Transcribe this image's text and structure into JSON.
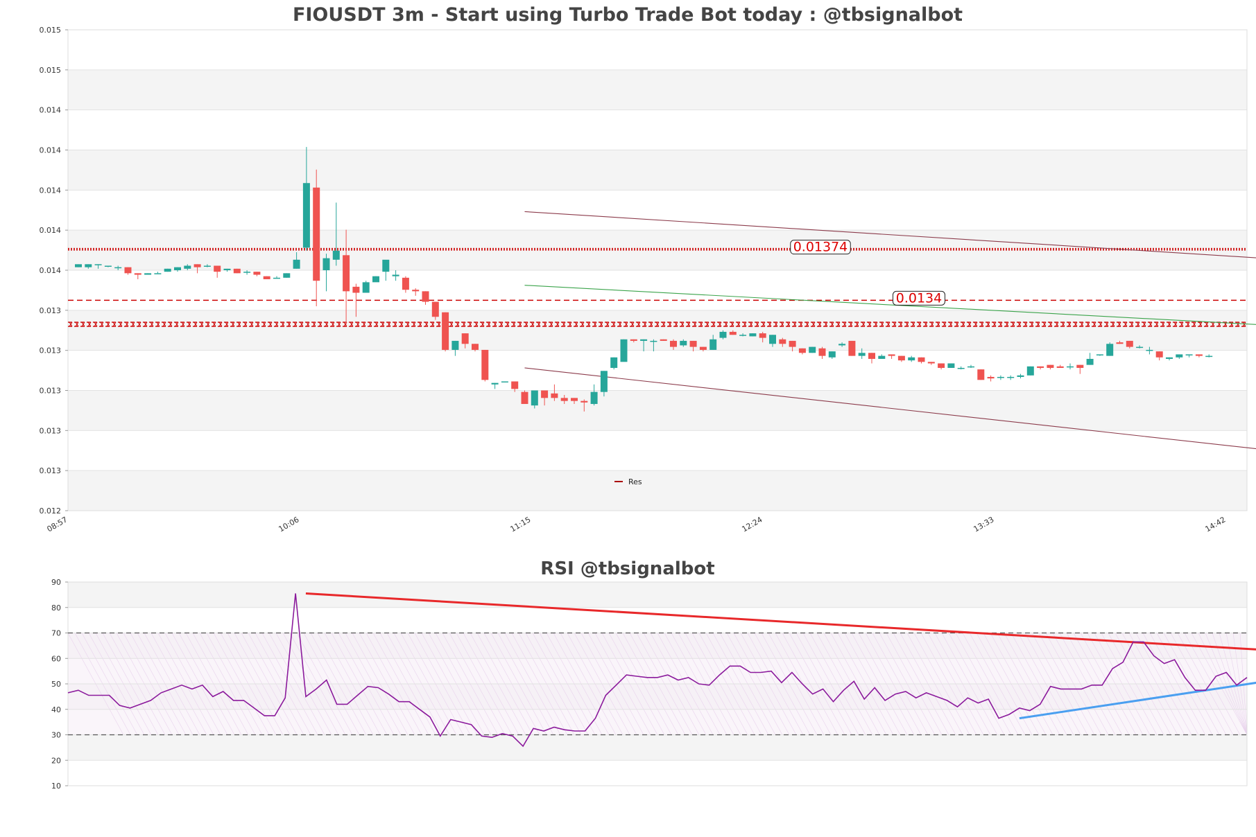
{
  "chart_data": [
    {
      "type": "candlestick",
      "title": "FIOUSDT 3m - Start using Turbo Trade Bot today : @tbsignalbot",
      "xlabel": "",
      "ylabel": "",
      "ylim": [
        0.012,
        0.0152
      ],
      "y_tick_labels": [
        "0.012",
        "0.013",
        "0.013",
        "0.013",
        "0.013",
        "0.013",
        "0.014",
        "0.014",
        "0.014",
        "0.014",
        "0.014",
        "0.015",
        "0.015"
      ],
      "x_tick_labels": [
        "08:57",
        "10:06",
        "11:15",
        "12:24",
        "13:33",
        "14:42"
      ],
      "legend": {
        "entries": [
          "Res"
        ],
        "placement": "bottom-center"
      },
      "grid": "horizontal bands",
      "levels": [
        {
          "value": 0.01374,
          "label": "0.01374",
          "style": "dotted",
          "color": "#cc0000"
        },
        {
          "value": 0.0134,
          "label": "0.0134",
          "style": "dashed",
          "color": "#cc0000"
        },
        {
          "value": 0.01324,
          "label": "",
          "style": "hatched",
          "color": "#cc0000"
        }
      ],
      "trendlines": [
        {
          "name": "channel-upper",
          "color": "#8b3a4a",
          "points": [
            [
              45,
              0.01399
            ],
            [
              189,
              0.01339
            ]
          ]
        },
        {
          "name": "channel-mid",
          "color": "#3aa34a",
          "points": [
            [
              45,
              0.0135
            ],
            [
              189,
              0.01299
            ]
          ]
        },
        {
          "name": "channel-lower",
          "color": "#8b3a4a",
          "points": [
            [
              45,
              0.01295
            ],
            [
              189,
              0.0119
            ]
          ]
        }
      ],
      "colors": {
        "up": "#26a69a",
        "down": "#ef5350"
      },
      "candles": [
        [
          0.01362,
          0.01364,
          0.01364,
          0.01362
        ],
        [
          0.01362,
          0.01364,
          0.01364,
          0.01361
        ],
        [
          0.01364,
          0.01364,
          0.01364,
          0.01361
        ],
        [
          0.01363,
          0.01363,
          0.01363,
          0.01362
        ],
        [
          0.01362,
          0.01362,
          0.01363,
          0.0136
        ],
        [
          0.01362,
          0.01358,
          0.01362,
          0.01357
        ],
        [
          0.01358,
          0.01357,
          0.01358,
          0.01354
        ],
        [
          0.01357,
          0.01358,
          0.01358,
          0.01357
        ],
        [
          0.01358,
          0.01358,
          0.01359,
          0.01358
        ],
        [
          0.01359,
          0.01361,
          0.01361,
          0.01359
        ],
        [
          0.0136,
          0.01362,
          0.01362,
          0.01359
        ],
        [
          0.01361,
          0.01363,
          0.01364,
          0.0136
        ],
        [
          0.01364,
          0.01362,
          0.01364,
          0.01358
        ],
        [
          0.01363,
          0.01363,
          0.01364,
          0.01362
        ],
        [
          0.01363,
          0.01359,
          0.01363,
          0.01355
        ],
        [
          0.0136,
          0.01361,
          0.01361,
          0.01359
        ],
        [
          0.01361,
          0.01358,
          0.01361,
          0.01358
        ],
        [
          0.01359,
          0.01359,
          0.0136,
          0.01357
        ],
        [
          0.01359,
          0.01357,
          0.01359,
          0.01356
        ],
        [
          0.01356,
          0.01354,
          0.01356,
          0.01354
        ],
        [
          0.01355,
          0.01355,
          0.01356,
          0.01355
        ],
        [
          0.01355,
          0.01358,
          0.01358,
          0.01355
        ],
        [
          0.01361,
          0.01367,
          0.01372,
          0.01361
        ],
        [
          0.01375,
          0.01418,
          0.01442,
          0.01373
        ],
        [
          0.01415,
          0.01353,
          0.01427,
          0.01336
        ],
        [
          0.0136,
          0.01368,
          0.01371,
          0.01346
        ],
        [
          0.01367,
          0.01373,
          0.01405,
          0.01363
        ],
        [
          0.0137,
          0.01346,
          0.01387,
          0.01324
        ],
        [
          0.01349,
          0.01345,
          0.01351,
          0.01329
        ],
        [
          0.01345,
          0.01352,
          0.01353,
          0.01348
        ],
        [
          0.01352,
          0.01356,
          0.01356,
          0.01353
        ],
        [
          0.01359,
          0.01367,
          0.01365,
          0.01353
        ],
        [
          0.01356,
          0.01357,
          0.0136,
          0.01353
        ],
        [
          0.01355,
          0.01347,
          0.01356,
          0.01345
        ],
        [
          0.01347,
          0.01346,
          0.01348,
          0.01343
        ],
        [
          0.01346,
          0.01339,
          0.01346,
          0.01337
        ],
        [
          0.01339,
          0.01329,
          0.01339,
          0.01327
        ],
        [
          0.01332,
          0.01307,
          0.01332,
          0.01306
        ],
        [
          0.01307,
          0.01313,
          0.01313,
          0.01303
        ],
        [
          0.01318,
          0.01311,
          0.01318,
          0.01308
        ],
        [
          0.01311,
          0.01307,
          0.01311,
          0.01306
        ],
        [
          0.01307,
          0.01287,
          0.01307,
          0.01286
        ],
        [
          0.01284,
          0.01285,
          0.01285,
          0.01281
        ],
        [
          0.01286,
          0.01286,
          0.01286,
          0.01286
        ],
        [
          0.01286,
          0.01281,
          0.01286,
          0.01279
        ],
        [
          0.01279,
          0.01271,
          0.0128,
          0.01271
        ],
        [
          0.0127,
          0.0128,
          0.0128,
          0.01268
        ],
        [
          0.0128,
          0.01275,
          0.0128,
          0.0127
        ],
        [
          0.01278,
          0.01275,
          0.01284,
          0.01273
        ],
        [
          0.01275,
          0.01273,
          0.01277,
          0.01271
        ],
        [
          0.01275,
          0.01273,
          0.01275,
          0.01271
        ],
        [
          0.01273,
          0.01272,
          0.01274,
          0.01266
        ],
        [
          0.01271,
          0.01279,
          0.01284,
          0.0127
        ],
        [
          0.01279,
          0.01293,
          0.01293,
          0.01276
        ],
        [
          0.01295,
          0.01302,
          0.01302,
          0.01294
        ],
        [
          0.01299,
          0.01314,
          0.01314,
          0.013
        ],
        [
          0.01314,
          0.01313,
          0.01314,
          0.01312
        ],
        [
          0.01313,
          0.01314,
          0.01314,
          0.01306
        ],
        [
          0.01313,
          0.01313,
          0.01314,
          0.01306
        ],
        [
          0.01314,
          0.01313,
          0.01314,
          0.01313
        ],
        [
          0.01313,
          0.01309,
          0.01314,
          0.01307
        ],
        [
          0.0131,
          0.01313,
          0.01314,
          0.01309
        ],
        [
          0.01313,
          0.01309,
          0.01313,
          0.01306
        ],
        [
          0.01309,
          0.01307,
          0.01309,
          0.01306
        ],
        [
          0.01307,
          0.01314,
          0.01317,
          0.01307
        ],
        [
          0.01315,
          0.01319,
          0.0132,
          0.01314
        ],
        [
          0.01319,
          0.01317,
          0.0132,
          0.01317
        ],
        [
          0.01317,
          0.01317,
          0.01318,
          0.01316
        ],
        [
          0.01316,
          0.01318,
          0.01318,
          0.01316
        ],
        [
          0.01318,
          0.01315,
          0.01319,
          0.01312
        ],
        [
          0.01311,
          0.01317,
          0.01317,
          0.01309
        ],
        [
          0.01314,
          0.01311,
          0.01315,
          0.01309
        ],
        [
          0.01313,
          0.01309,
          0.01313,
          0.01306
        ],
        [
          0.01308,
          0.01305,
          0.01308,
          0.01304
        ],
        [
          0.01305,
          0.01309,
          0.01309,
          0.01305
        ],
        [
          0.01308,
          0.01303,
          0.01309,
          0.01301
        ],
        [
          0.01302,
          0.01306,
          0.01306,
          0.01301
        ],
        [
          0.0131,
          0.01311,
          0.01312,
          0.01309
        ],
        [
          0.01313,
          0.01303,
          0.01313,
          0.01303
        ],
        [
          0.01303,
          0.01305,
          0.01308,
          0.01301
        ],
        [
          0.01305,
          0.01301,
          0.01305,
          0.01298
        ],
        [
          0.01301,
          0.01303,
          0.01304,
          0.01302
        ],
        [
          0.01304,
          0.01303,
          0.01304,
          0.01301
        ],
        [
          0.01303,
          0.013,
          0.01303,
          0.01299
        ],
        [
          0.013,
          0.01302,
          0.01303,
          0.01299
        ],
        [
          0.01302,
          0.01299,
          0.01302,
          0.01298
        ],
        [
          0.01299,
          0.01298,
          0.01299,
          0.01297
        ],
        [
          0.01298,
          0.01295,
          0.01298,
          0.01294
        ],
        [
          0.01295,
          0.01298,
          0.01298,
          0.01295
        ],
        [
          0.01295,
          0.01295,
          0.01296,
          0.01294
        ],
        [
          0.01296,
          0.01296,
          0.01297,
          0.01295
        ],
        [
          0.01294,
          0.01287,
          0.01294,
          0.01287
        ],
        [
          0.01289,
          0.01288,
          0.0129,
          0.01286
        ],
        [
          0.01289,
          0.01289,
          0.0129,
          0.01287
        ],
        [
          0.01289,
          0.01289,
          0.0129,
          0.01287
        ],
        [
          0.01289,
          0.0129,
          0.01291,
          0.01288
        ],
        [
          0.0129,
          0.01296,
          0.01296,
          0.0129
        ],
        [
          0.01296,
          0.01295,
          0.01296,
          0.01294
        ],
        [
          0.01297,
          0.01295,
          0.01297,
          0.01294
        ],
        [
          0.01296,
          0.01295,
          0.01297,
          0.01295
        ],
        [
          0.01296,
          0.01296,
          0.01298,
          0.01294
        ],
        [
          0.01297,
          0.01295,
          0.01297,
          0.01291
        ],
        [
          0.01297,
          0.01301,
          0.01305,
          0.01297
        ],
        [
          0.01304,
          0.01304,
          0.01304,
          0.01303
        ],
        [
          0.01303,
          0.01311,
          0.01312,
          0.01303
        ],
        [
          0.01312,
          0.01311,
          0.01313,
          0.01311
        ],
        [
          0.01313,
          0.01309,
          0.01313,
          0.01308
        ],
        [
          0.01309,
          0.01309,
          0.0131,
          0.01308
        ],
        [
          0.01307,
          0.01307,
          0.01309,
          0.01304
        ],
        [
          0.01306,
          0.01302,
          0.01306,
          0.013
        ],
        [
          0.01301,
          0.01302,
          0.01302,
          0.013
        ],
        [
          0.01302,
          0.01304,
          0.01304,
          0.01301
        ],
        [
          0.01304,
          0.01304,
          0.01304,
          0.01302
        ],
        [
          0.01304,
          0.01303,
          0.01304,
          0.01302
        ],
        [
          0.01303,
          0.01303,
          0.01304,
          0.01302
        ]
      ]
    },
    {
      "type": "line",
      "title": "RSI @tbsignalbot",
      "xlabel": "",
      "ylabel": "",
      "ylim": [
        10,
        90
      ],
      "y_tick_labels": [
        "10",
        "20",
        "30",
        "40",
        "50",
        "60",
        "70",
        "80",
        "90"
      ],
      "reference_levels": [
        30,
        70
      ],
      "colors": {
        "line": "#8b1a9c",
        "down_trend": "#e8282a",
        "up_trend": "#4a9ff0"
      },
      "trendlines": [
        {
          "name": "rsi-resistance",
          "color": "#e8282a",
          "points": [
            [
              23,
              85.5
            ],
            [
              115,
              63.5
            ]
          ]
        },
        {
          "name": "rsi-support",
          "color": "#4a9ff0",
          "points": [
            [
              92,
              36.5
            ],
            [
              115,
              50.5
            ]
          ]
        }
      ],
      "values": [
        46.5,
        47.5,
        45.5,
        45.5,
        45.5,
        41.5,
        40.5,
        42.0,
        43.5,
        46.5,
        48.0,
        49.5,
        48.0,
        49.5,
        45.0,
        47.0,
        43.5,
        43.5,
        40.5,
        37.5,
        37.5,
        44.5,
        85.5,
        45.0,
        48.0,
        51.5,
        42.0,
        42.0,
        45.5,
        49.0,
        48.5,
        46.0,
        43.0,
        43.0,
        40.0,
        37.0,
        29.5,
        36.0,
        35.0,
        34.0,
        29.5,
        29.0,
        30.5,
        29.5,
        25.5,
        32.5,
        31.5,
        33.0,
        32.0,
        31.5,
        31.5,
        36.5,
        45.5,
        49.5,
        53.5,
        53.0,
        52.5,
        52.5,
        53.5,
        51.5,
        52.5,
        50.0,
        49.5,
        53.5,
        57.0,
        57.0,
        54.5,
        54.5,
        55.0,
        50.5,
        54.5,
        50.0,
        46.0,
        48.0,
        43.0,
        47.5,
        51.0,
        44.0,
        48.5,
        43.5,
        46.0,
        47.0,
        44.5,
        46.5,
        45.0,
        43.5,
        41.0,
        44.5,
        42.5,
        44.0,
        36.5,
        38.0,
        40.5,
        39.5,
        42.0,
        49.0,
        48.0,
        48.0,
        48.0,
        49.5,
        49.5,
        56.0,
        58.5,
        66.5,
        66.5,
        61.0,
        58.0,
        59.5,
        52.5,
        47.5,
        47.5,
        53.0,
        54.5,
        49.5,
        52.5
      ]
    }
  ]
}
